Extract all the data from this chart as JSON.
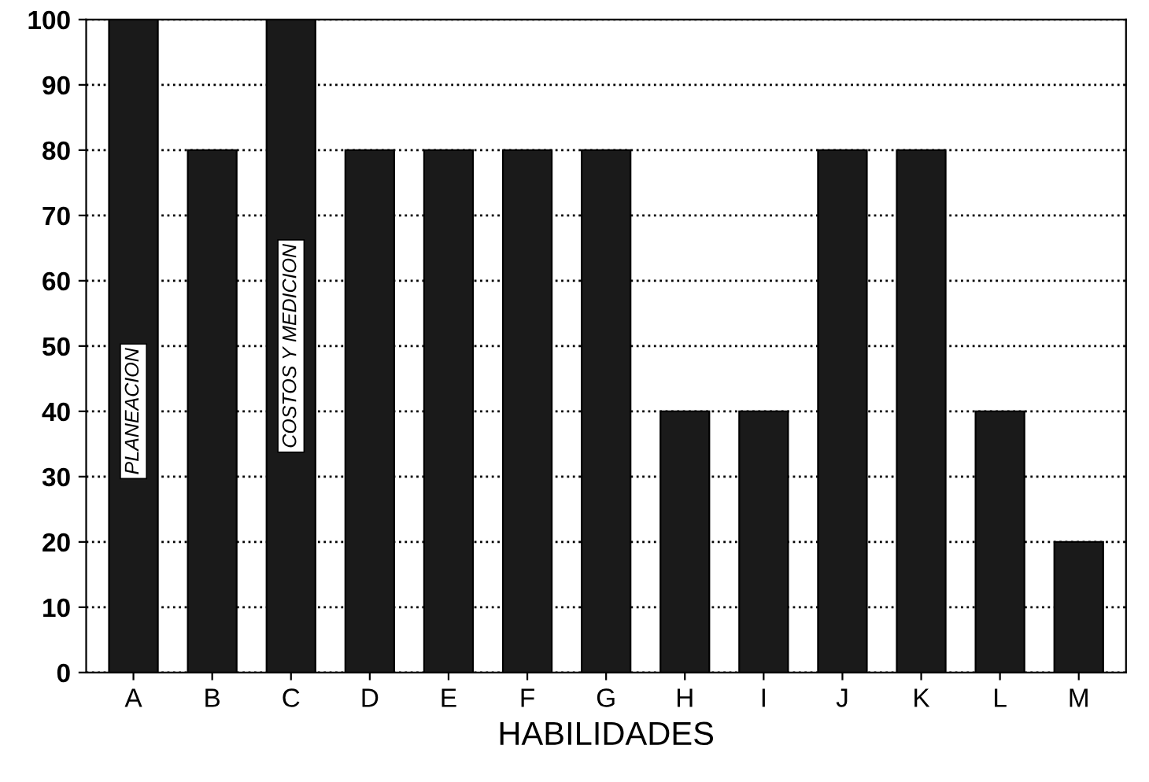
{
  "chart_data": {
    "type": "bar",
    "xlabel": "HABILIDADES",
    "categories": [
      "A",
      "B",
      "C",
      "D",
      "E",
      "F",
      "G",
      "H",
      "I",
      "J",
      "K",
      "L",
      "M"
    ],
    "values": [
      100,
      80,
      100,
      80,
      80,
      80,
      80,
      40,
      40,
      80,
      80,
      40,
      20
    ],
    "color": "#1a1a1a",
    "ylim": [
      0,
      100
    ],
    "yticks": [
      0,
      10,
      20,
      30,
      40,
      50,
      60,
      70,
      80,
      90,
      100
    ],
    "grid": "y",
    "annotations": [
      "PLANEACION",
      "COSTOS Y MEDICION"
    ]
  }
}
